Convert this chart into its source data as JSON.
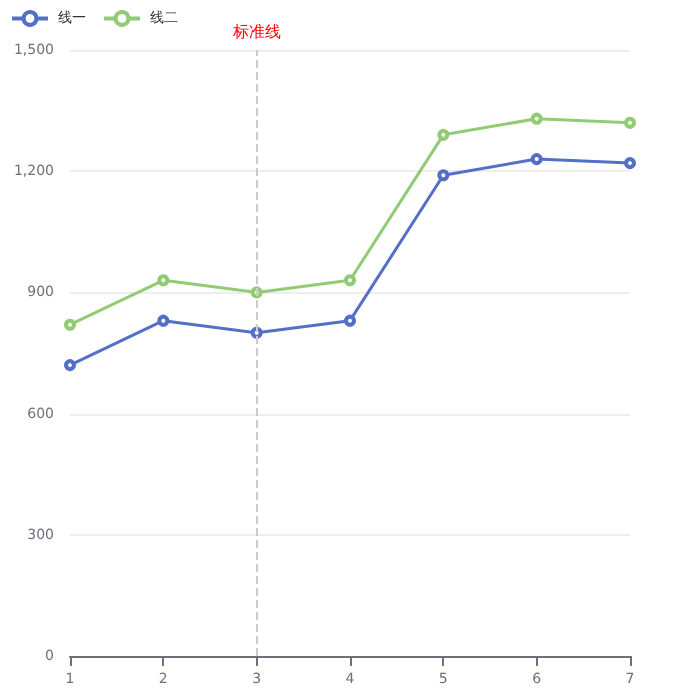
{
  "chart_data": {
    "type": "line",
    "x": [
      1,
      2,
      3,
      4,
      5,
      6,
      7
    ],
    "series": [
      {
        "name": "线一",
        "color": "#5470c6",
        "values": [
          720,
          830,
          800,
          830,
          1190,
          1230,
          1220
        ]
      },
      {
        "name": "线二",
        "color": "#91cc75",
        "values": [
          820,
          930,
          900,
          930,
          1290,
          1330,
          1320
        ]
      }
    ],
    "xlim": [
      1,
      7
    ],
    "xticks": [
      1,
      2,
      3,
      4,
      5,
      6,
      7
    ],
    "ylim": [
      0,
      1500
    ],
    "yticks": [
      0,
      300,
      600,
      900,
      {
        "value": 1200,
        "label": "1,200"
      },
      {
        "value": 1500,
        "label": "1,500"
      }
    ],
    "ref_lines": [
      {
        "axis": "x",
        "value": 3,
        "label": "标准线",
        "color": "#cccccc",
        "line_style": "dashed"
      }
    ],
    "grid": "y",
    "legend": "top left",
    "marker": "circle",
    "line_style": "solid"
  }
}
